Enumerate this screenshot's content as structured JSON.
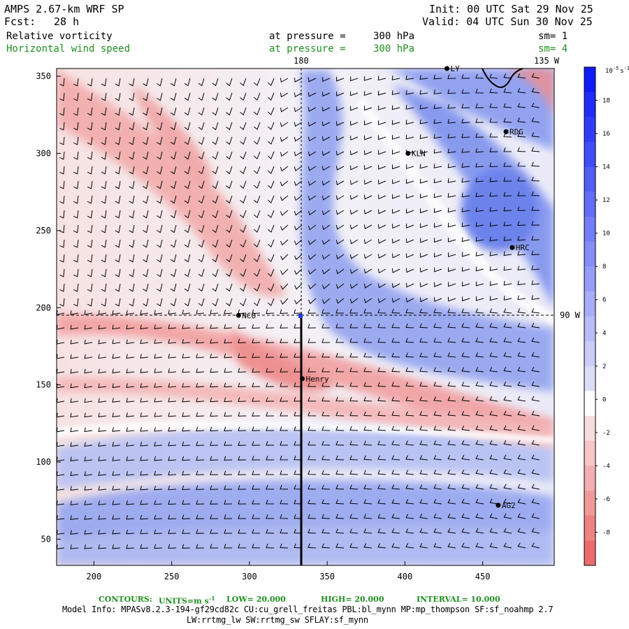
{
  "header": {
    "model": "AMPS 2.67-km WRF SP",
    "fcst_label": "Fcst:",
    "fcst_value": "28 h",
    "init": "Init: 00 UTC Sat 29 Nov 25",
    "valid": "Valid: 04 UTC Sun 30 Nov 25",
    "field1": {
      "name": "Relative vorticity",
      "pressure_label": "at pressure =",
      "pressure_value": "300 hPa",
      "sm": "sm= 1"
    },
    "field2": {
      "name": "Horizontal wind speed",
      "pressure_label": "at pressure =",
      "pressure_value": "300 hPa",
      "sm": "sm= 4"
    }
  },
  "map": {
    "meridian_labels": [
      "180",
      "135 W"
    ],
    "parallel_label": "90 W",
    "x_ticks": [
      "200",
      "250",
      "300",
      "350",
      "400",
      "450"
    ],
    "y_ticks": [
      "50",
      "100",
      "150",
      "200",
      "250",
      "300",
      "350"
    ],
    "stations": [
      {
        "name": "NCO",
        "x": 293,
        "y": 195
      },
      {
        "name": "Henry",
        "x": 334,
        "y": 154
      },
      {
        "name": "KLN",
        "x": 402,
        "y": 300
      },
      {
        "name": "RDG",
        "x": 465,
        "y": 314
      },
      {
        "name": "HRC",
        "x": 469,
        "y": 239
      },
      {
        "name": "AG2",
        "x": 460,
        "y": 72
      },
      {
        "name": "LY",
        "x": 427,
        "y": 355
      }
    ],
    "colors": {
      "positive": "#3a55e8",
      "negative": "#ec5a5a",
      "neutral": "#ffffff"
    }
  },
  "colorbar": {
    "units": "10^-5 s^-1",
    "units_base": "10",
    "units_exp": "-5",
    "units_tail": "s",
    "units_tail_exp": "-1",
    "ticks": [
      "18",
      "16",
      "14",
      "12",
      "10",
      "8",
      "6",
      "4",
      "2",
      "0",
      "-2",
      "-4",
      "-6",
      "-8"
    ]
  },
  "footer": {
    "contours_label": "CONTOURS:",
    "units_label": "UNITS=m s",
    "units_exp": "-1",
    "low": "LOW= 20.000",
    "high": "HIGH= 20.000",
    "interval": "INTERVAL= 10.000",
    "model_info_1": "Model Info: MPASv8.2.3-194-gf29cd82c CU:cu_grell_freitas PBL:bl_mynn MP:mp_thompson SF:sf_noahmp 2.7",
    "model_info_2": "LW:rrtmg_lw SW:rrtmg_sw SFLAY:sf_mynn"
  }
}
